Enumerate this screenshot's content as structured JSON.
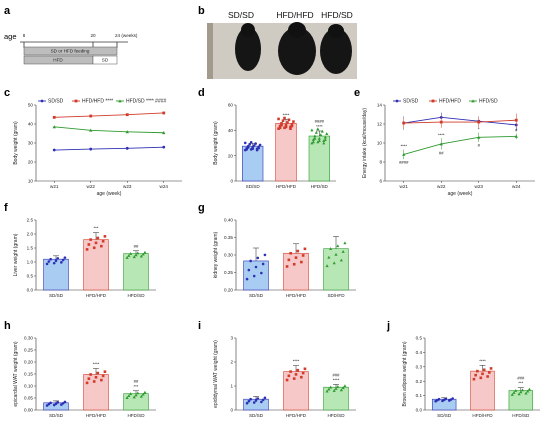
{
  "panel_letters": [
    "a",
    "b",
    "c",
    "d",
    "e",
    "f",
    "g",
    "h",
    "i",
    "j"
  ],
  "timeline": {
    "age_label": "age",
    "ticks": [
      "8",
      "20",
      "24 (weeks)"
    ],
    "bar1": "SD or HFD feeding",
    "bar2a": "HFD",
    "bar2b": "SD"
  },
  "photo": {
    "labels": [
      "SD/SD",
      "HFD/HFD",
      "HFD/SD"
    ]
  },
  "colors": {
    "sdsd": "#2f2fb5",
    "hfdhfd": "#d23b2a",
    "hfdsd": "#2f9a2f",
    "bar_sdsd": "#a9cdf2",
    "bar_hfdhfd": "#f7c8c8",
    "bar_hfdsd": "#b7e7b5"
  },
  "chart_data": [
    {
      "panel": "c",
      "type": "line",
      "ylabel": "Body weight (gram)",
      "xlabel": "age (week)",
      "x": [
        "w21",
        "w22",
        "w23",
        "w24"
      ],
      "ylim": [
        10,
        50
      ],
      "yticks": [
        "10",
        "20",
        "30",
        "40",
        "50"
      ],
      "series": [
        {
          "name": "SD/SD",
          "values": [
            26.3,
            26.8,
            27.2,
            27.8
          ],
          "sig": ""
        },
        {
          "name": "HFD/HFD",
          "values": [
            43.5,
            44.2,
            44.9,
            45.8
          ],
          "sig": "****"
        },
        {
          "name": "HFD/SD",
          "values": [
            38.5,
            36.7,
            35.9,
            35.4
          ],
          "sig": "**** ####"
        }
      ]
    },
    {
      "panel": "d",
      "type": "bar",
      "ylabel": "Body weight (gram)",
      "ylim": [
        0,
        60
      ],
      "yticks": [
        "0",
        "20",
        "40",
        "60"
      ],
      "categories": [
        "SD/SD",
        "HFD/HFD",
        "HFD/SD"
      ],
      "values": [
        27.5,
        45.5,
        35.5
      ],
      "errors": [
        2.2,
        3.0,
        4.0
      ],
      "sig": [
        "",
        "****",
        "####\n****"
      ]
    },
    {
      "panel": "e",
      "type": "line",
      "ylabel": "Energy intake (kcal/mouse/day)",
      "xlabel": "age (week)",
      "x": [
        "w21",
        "w22",
        "w23",
        "w24"
      ],
      "ylim": [
        6,
        14
      ],
      "yticks": [
        "6",
        "8",
        "10",
        "12",
        "14"
      ],
      "series": [
        {
          "name": "SD/SD",
          "values": [
            12.1,
            12.7,
            12.3,
            11.9
          ],
          "errors": [
            0.7,
            0.5,
            0.5,
            0.6
          ]
        },
        {
          "name": "HFD/HFD",
          "values": [
            12.1,
            12.2,
            12.2,
            12.4
          ],
          "errors": [
            0.6,
            0.6,
            0.6,
            0.7
          ]
        },
        {
          "name": "HFD/SD",
          "values": [
            8.8,
            9.9,
            10.6,
            10.7
          ],
          "errors": [
            0.5,
            0.6,
            0.5,
            0.3
          ]
        }
      ],
      "annotations": [
        "****\n####",
        "****\n##",
        "*\n#",
        "#"
      ]
    },
    {
      "panel": "f",
      "type": "bar",
      "ylabel": "Liver weight (gram)",
      "ylim": [
        0,
        2.5
      ],
      "yticks": [
        "0.0",
        "0.5",
        "1.0",
        "1.5",
        "2.0",
        "2.5"
      ],
      "categories": [
        "SD/SD",
        "HFD/HFD",
        "HFD/SD"
      ],
      "values": [
        1.1,
        1.8,
        1.3
      ],
      "errors": [
        0.12,
        0.25,
        0.1
      ],
      "sig": [
        "",
        "***",
        "##"
      ]
    },
    {
      "panel": "g",
      "type": "bar",
      "ylabel": "kidney weight (gram)",
      "ylim": [
        0.2,
        0.4
      ],
      "yticks": [
        "0.20",
        "0.25",
        "0.30",
        "0.35",
        "0.40"
      ],
      "categories": [
        "SD/SD",
        "HFD/HFD",
        "SD/HFD"
      ],
      "values": [
        0.283,
        0.305,
        0.318
      ],
      "errors": [
        0.037,
        0.027,
        0.035
      ],
      "sig": [
        "",
        "",
        ""
      ]
    },
    {
      "panel": "h",
      "type": "bar",
      "ylabel": "epicardial WAT weight (gram)",
      "ylim": [
        0,
        0.3
      ],
      "yticks": [
        "0.00",
        "0.05",
        "0.10",
        "0.15",
        "0.20",
        "0.25",
        "0.30"
      ],
      "categories": [
        "SD/SD",
        "HFD/HFD",
        "HFD/SD"
      ],
      "values": [
        0.03,
        0.148,
        0.068
      ],
      "errors": [
        0.008,
        0.025,
        0.012
      ],
      "sig": [
        "",
        "****",
        "##\n***"
      ]
    },
    {
      "panel": "i",
      "type": "bar",
      "ylabel": "epididymal WAT weight (gram)",
      "ylim": [
        0,
        3
      ],
      "yticks": [
        "0",
        "1",
        "2",
        "3"
      ],
      "categories": [
        "SD/SD",
        "HFD/HFD",
        "HFD/SD"
      ],
      "values": [
        0.45,
        1.6,
        0.95
      ],
      "errors": [
        0.12,
        0.25,
        0.12
      ],
      "sig": [
        "",
        "****",
        "###\n****"
      ]
    },
    {
      "panel": "j",
      "type": "bar",
      "ylabel": "Brown adipose weight (gram)",
      "ylim": [
        0,
        0.5
      ],
      "yticks": [
        "0.0",
        "0.1",
        "0.2",
        "0.3",
        "0.4",
        "0.5"
      ],
      "categories": [
        "SD/SD",
        "HFD/HFD",
        "HFD/SD"
      ],
      "values": [
        0.075,
        0.27,
        0.135
      ],
      "errors": [
        0.01,
        0.04,
        0.02
      ],
      "sig": [
        "",
        "****",
        "###\n***"
      ]
    }
  ]
}
